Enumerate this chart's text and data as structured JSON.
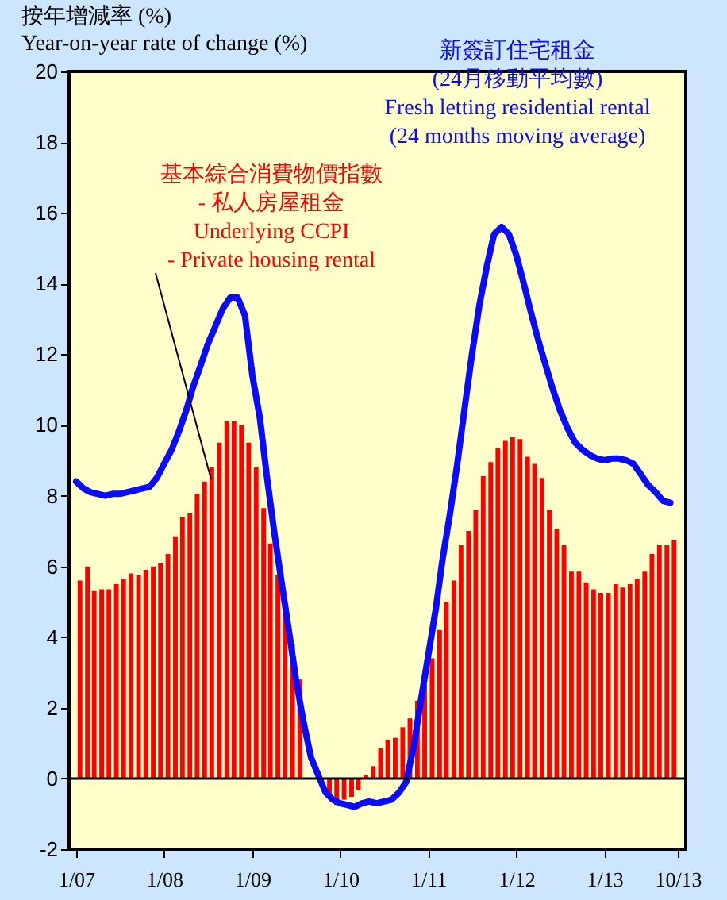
{
  "chart_data": {
    "type": "bar",
    "ylabel": "按年增減率 (%)\nYear-on-year rate of change (%)",
    "x": [
      "2007-01",
      "2007-02",
      "2007-03",
      "2007-04",
      "2007-05",
      "2007-06",
      "2007-07",
      "2007-08",
      "2007-09",
      "2007-10",
      "2007-11",
      "2007-12",
      "2008-01",
      "2008-02",
      "2008-03",
      "2008-04",
      "2008-05",
      "2008-06",
      "2008-07",
      "2008-08",
      "2008-09",
      "2008-10",
      "2008-11",
      "2008-12",
      "2009-01",
      "2009-02",
      "2009-03",
      "2009-04",
      "2009-05",
      "2009-06",
      "2009-07",
      "2009-08",
      "2009-09",
      "2009-10",
      "2009-11",
      "2009-12",
      "2010-01",
      "2010-02",
      "2010-03",
      "2010-04",
      "2010-05",
      "2010-06",
      "2010-07",
      "2010-08",
      "2010-09",
      "2010-10",
      "2010-11",
      "2010-12",
      "2011-01",
      "2011-02",
      "2011-03",
      "2011-04",
      "2011-05",
      "2011-06",
      "2011-07",
      "2011-08",
      "2011-09",
      "2011-10",
      "2011-11",
      "2011-12",
      "2012-01",
      "2012-02",
      "2012-03",
      "2012-04",
      "2012-05",
      "2012-06",
      "2012-07",
      "2012-08",
      "2012-09",
      "2012-10",
      "2012-11",
      "2012-12",
      "2013-01",
      "2013-02",
      "2013-03",
      "2013-04",
      "2013-05",
      "2013-06",
      "2013-07",
      "2013-08",
      "2013-09",
      "2013-10"
    ],
    "series": [
      {
        "name": "基本綜合消費物價指數\n- 私人房屋租金\nUnderlying CCPI\n- Private housing rental",
        "color": "#ff0000",
        "values": [
          5.6,
          6.0,
          5.3,
          5.35,
          5.35,
          5.5,
          5.65,
          5.8,
          5.75,
          5.9,
          6.0,
          6.1,
          6.35,
          6.85,
          7.4,
          7.5,
          8.05,
          8.4,
          8.8,
          9.5,
          10.1,
          10.1,
          10.0,
          9.5,
          8.8,
          7.65,
          6.65,
          5.75,
          4.7,
          3.8,
          2.8,
          null,
          null,
          null,
          -0.52,
          -0.75,
          -0.6,
          -0.52,
          -0.33,
          0.1,
          0.35,
          0.85,
          1.1,
          1.15,
          1.45,
          1.7,
          2.2,
          2.65,
          3.4,
          4.2,
          5.0,
          5.6,
          6.6,
          7.0,
          7.6,
          8.55,
          8.95,
          9.35,
          9.55,
          9.65,
          9.6,
          9.1,
          8.9,
          8.5,
          7.6,
          7.05,
          6.6,
          5.85,
          5.85,
          5.55,
          5.35,
          5.25,
          5.25,
          5.5,
          5.4,
          5.5,
          5.65,
          5.85,
          6.35,
          6.6,
          6.6,
          6.75
        ]
      },
      {
        "name": "新簽訂住宅租金\n(24月移動平均數)\nFresh letting residential rental\n(24 months moving average)",
        "type": "line",
        "color": "#0a0aff",
        "values": [
          8.4,
          8.2,
          8.1,
          8.05,
          8.0,
          8.05,
          8.05,
          8.1,
          8.15,
          8.2,
          8.25,
          8.5,
          8.9,
          9.3,
          9.8,
          10.4,
          11.1,
          11.7,
          12.3,
          12.8,
          13.3,
          13.6,
          13.6,
          13.1,
          11.4,
          10.2,
          8.6,
          7.0,
          5.6,
          4.2,
          2.8,
          1.6,
          0.6,
          0.1,
          -0.4,
          -0.6,
          -0.7,
          -0.75,
          -0.8,
          -0.7,
          -0.65,
          -0.7,
          -0.65,
          -0.6,
          -0.4,
          -0.1,
          0.9,
          2.2,
          3.5,
          4.8,
          6.2,
          7.5,
          8.9,
          10.5,
          12.0,
          13.4,
          14.5,
          15.4,
          15.6,
          15.4,
          14.8,
          14.0,
          13.2,
          12.4,
          11.7,
          11.0,
          10.4,
          9.9,
          9.5,
          9.3,
          9.15,
          9.05,
          9.0,
          9.05,
          9.05,
          9.0,
          8.9,
          8.6,
          8.3,
          8.1,
          7.85,
          7.8
        ]
      }
    ],
    "xlim": [
      "2007-01",
      "2013-11"
    ],
    "xticks": [
      {
        "value": "2007-01",
        "label": "1/07"
      },
      {
        "value": "2008-01",
        "label": "1/08"
      },
      {
        "value": "2009-01",
        "label": "1/09"
      },
      {
        "value": "2010-01",
        "label": "1/10"
      },
      {
        "value": "2011-01",
        "label": "1/11"
      },
      {
        "value": "2012-01",
        "label": "1/12"
      },
      {
        "value": "2013-01",
        "label": "1/13"
      },
      {
        "value": "2013-11",
        "label": "10/13"
      }
    ],
    "ylim": [
      -2,
      20
    ],
    "yticks": [
      -2,
      0,
      2,
      4,
      6,
      8,
      10,
      12,
      14,
      16,
      18,
      20
    ],
    "ref_lines": [
      {
        "axis": "y",
        "value": 0,
        "color": "#000000"
      }
    ],
    "grid": false
  }
}
